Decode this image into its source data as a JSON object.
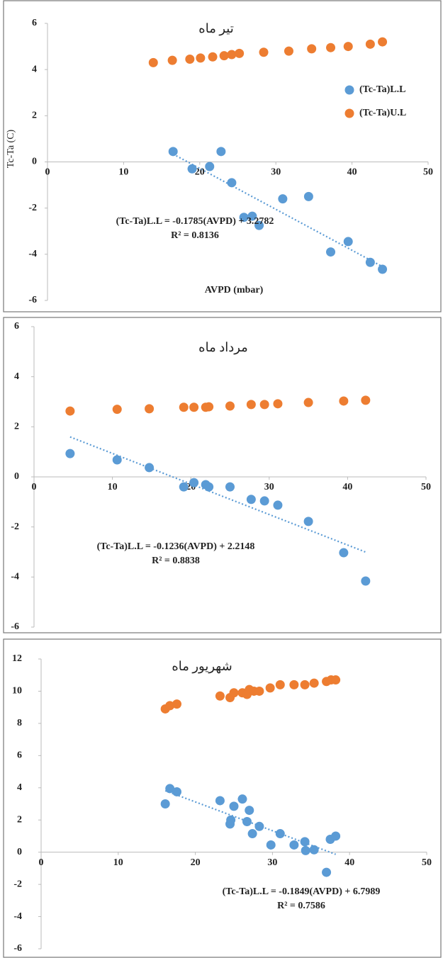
{
  "chart_data": [
    {
      "type": "scatter",
      "title": "تیر ماه",
      "y_label": "Tc-Ta (C)",
      "x_label": "AVPD (mbar)",
      "annotations": [
        "(Tc-Ta)L.L = -0.1785(AVPD) + 3.2782",
        "R² = 0.8136"
      ],
      "xlim": [
        0,
        50
      ],
      "xticks": [
        0,
        10,
        20,
        30,
        40,
        50
      ],
      "ylim": [
        -6,
        6
      ],
      "yticks": [
        -6,
        -4,
        -2,
        0,
        2,
        4,
        6
      ],
      "legend": "right",
      "series": [
        {
          "name": "(Tc-Ta)L.L",
          "color": "#5b9bd5",
          "x": [
            16.5,
            19.0,
            21.3,
            22.8,
            24.2,
            25.8,
            26.9,
            27.8,
            30.9,
            34.3,
            37.2,
            39.5,
            42.4,
            44.0
          ],
          "values": [
            0.45,
            -0.3,
            -0.2,
            0.45,
            -0.9,
            -2.4,
            -2.35,
            -2.75,
            -1.6,
            -1.5,
            -3.9,
            -3.45,
            -4.35,
            -4.65
          ]
        },
        {
          "name": "(Tc-Ta)U.L",
          "color": "#ed7d31",
          "x": [
            13.9,
            16.4,
            18.7,
            20.1,
            21.7,
            23.2,
            24.2,
            25.2,
            28.4,
            31.7,
            34.7,
            37.2,
            39.5,
            42.4,
            44.0
          ],
          "values": [
            4.3,
            4.4,
            4.45,
            4.5,
            4.55,
            4.6,
            4.65,
            4.7,
            4.75,
            4.8,
            4.9,
            4.95,
            5.0,
            5.1,
            5.2
          ]
        }
      ]
    },
    {
      "type": "scatter",
      "title": "مرداد ماه",
      "annotations": [
        "(Tc-Ta)L.L = -0.1236(AVPD) + 2.2148",
        "R² = 0.8838"
      ],
      "xlim": [
        0,
        50
      ],
      "xticks": [
        0,
        10,
        20,
        30,
        40,
        50
      ],
      "ylim": [
        -6,
        6
      ],
      "yticks": [
        -6,
        -4,
        -2,
        0,
        2,
        4,
        6
      ],
      "series": [
        {
          "color": "#5b9bd5",
          "x": [
            4.6,
            10.6,
            14.7,
            19.1,
            20.4,
            21.9,
            22.3,
            25.0,
            27.7,
            29.4,
            31.1,
            35.0,
            39.5,
            42.3
          ],
          "values": [
            0.93,
            0.68,
            0.37,
            -0.4,
            -0.23,
            -0.31,
            -0.4,
            -0.4,
            -0.9,
            -0.96,
            -1.13,
            -1.78,
            -3.03,
            -4.16
          ]
        },
        {
          "color": "#ed7d31",
          "x": [
            4.6,
            10.6,
            14.7,
            19.1,
            20.4,
            21.9,
            22.3,
            25.0,
            27.7,
            29.4,
            31.1,
            35.0,
            39.5,
            42.3
          ],
          "values": [
            2.63,
            2.7,
            2.72,
            2.78,
            2.78,
            2.78,
            2.8,
            2.83,
            2.89,
            2.89,
            2.92,
            2.97,
            3.03,
            3.06
          ]
        }
      ]
    },
    {
      "type": "scatter",
      "title": "شهریور ماه",
      "annotations": [
        "(Tc-Ta)L.L = -0.1849(AVPD) + 6.7989",
        "R² = 0.7586"
      ],
      "xlim": [
        0,
        50
      ],
      "xticks": [
        0,
        10,
        20,
        30,
        40,
        50
      ],
      "ylim": [
        -6,
        12
      ],
      "yticks": [
        -6,
        -4,
        -2,
        0,
        2,
        4,
        6,
        8,
        10,
        12
      ],
      "series": [
        {
          "color": "#5b9bd5",
          "x": [
            16.1,
            16.7,
            17.6,
            23.2,
            24.5,
            24.6,
            25.0,
            26.1,
            26.7,
            27.0,
            27.4,
            28.3,
            29.8,
            31.0,
            32.8,
            34.2,
            34.3,
            35.4,
            37.0,
            37.5,
            38.2
          ],
          "values": [
            3.0,
            3.95,
            3.75,
            3.2,
            1.75,
            2.0,
            2.85,
            3.3,
            1.9,
            2.6,
            1.15,
            1.6,
            0.45,
            1.15,
            0.45,
            0.65,
            0.1,
            0.15,
            -1.25,
            0.8,
            1.0
          ]
        },
        {
          "color": "#ed7d31",
          "x": [
            16.1,
            16.7,
            17.6,
            23.2,
            24.5,
            25.0,
            26.1,
            26.7,
            27.0,
            27.6,
            28.3,
            29.7,
            31.0,
            32.8,
            34.2,
            35.4,
            37.0,
            37.6,
            38.2
          ],
          "values": [
            8.9,
            9.1,
            9.2,
            9.7,
            9.6,
            9.9,
            9.9,
            9.8,
            10.1,
            10.0,
            10.0,
            10.2,
            10.4,
            10.4,
            10.4,
            10.5,
            10.6,
            10.7,
            10.7
          ]
        }
      ]
    }
  ]
}
